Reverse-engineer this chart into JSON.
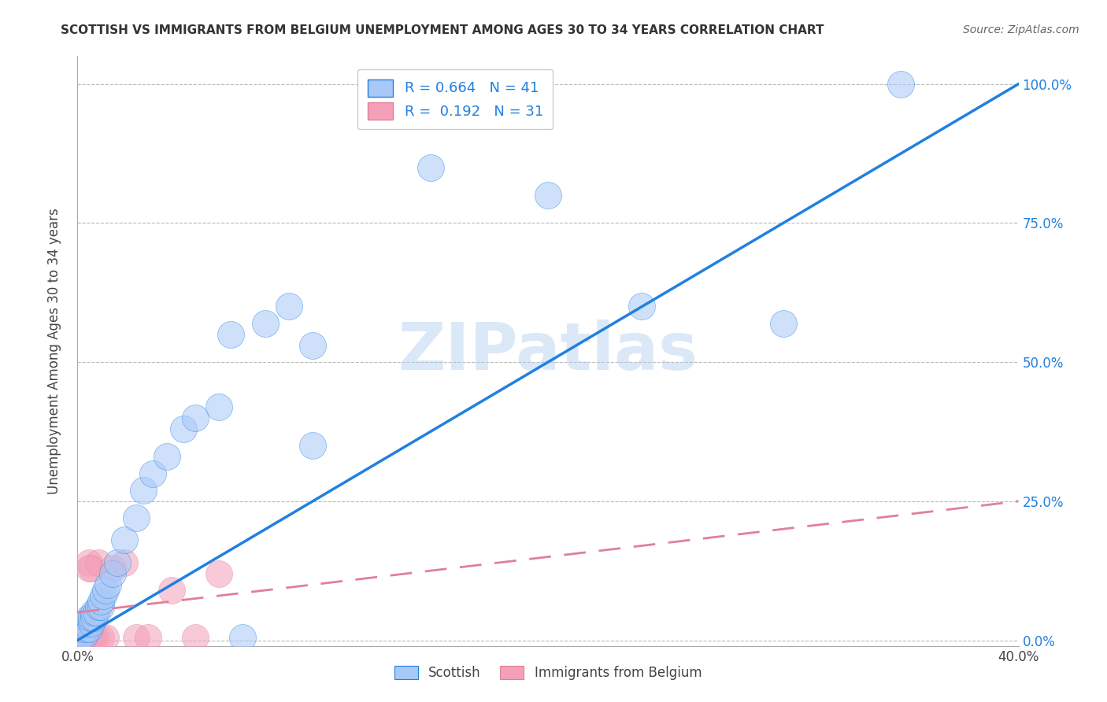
{
  "title": "SCOTTISH VS IMMIGRANTS FROM BELGIUM UNEMPLOYMENT AMONG AGES 30 TO 34 YEARS CORRELATION CHART",
  "source": "Source: ZipAtlas.com",
  "ylabel": "Unemployment Among Ages 30 to 34 years",
  "xlim": [
    0.0,
    0.4
  ],
  "ylim": [
    -0.01,
    1.05
  ],
  "xticks": [
    0.0,
    0.05,
    0.1,
    0.15,
    0.2,
    0.25,
    0.3,
    0.35,
    0.4
  ],
  "yticks": [
    0.0,
    0.25,
    0.5,
    0.75,
    1.0
  ],
  "ytick_labels": [
    "0.0%",
    "25.0%",
    "50.0%",
    "75.0%",
    "100.0%"
  ],
  "xtick_labels": [
    "0.0%",
    "",
    "",
    "",
    "",
    "",
    "",
    "",
    "40.0%"
  ],
  "R_scottish": 0.664,
  "N_scottish": 41,
  "R_belgium": 0.192,
  "N_belgium": 31,
  "scottish_color": "#a8c8f8",
  "belgium_color": "#f4a0b8",
  "line_color_scottish": "#2080e0",
  "line_color_belgium": "#e08098",
  "watermark": "ZIPatlas",
  "scottish_x": [
    0.001,
    0.002,
    0.002,
    0.003,
    0.003,
    0.004,
    0.004,
    0.005,
    0.005,
    0.006,
    0.006,
    0.007,
    0.007,
    0.008,
    0.009,
    0.01,
    0.01,
    0.011,
    0.012,
    0.013,
    0.015,
    0.017,
    0.02,
    0.025,
    0.028,
    0.032,
    0.038,
    0.045,
    0.05,
    0.06,
    0.065,
    0.07,
    0.08,
    0.09,
    0.1,
    0.1,
    0.15,
    0.2,
    0.24,
    0.3,
    0.35
  ],
  "scottish_y": [
    0.005,
    0.01,
    0.02,
    0.01,
    0.03,
    0.02,
    0.03,
    0.02,
    0.04,
    0.03,
    0.04,
    0.04,
    0.05,
    0.05,
    0.06,
    0.06,
    0.07,
    0.08,
    0.09,
    0.1,
    0.12,
    0.14,
    0.18,
    0.22,
    0.27,
    0.3,
    0.33,
    0.38,
    0.4,
    0.42,
    0.55,
    0.005,
    0.57,
    0.6,
    0.35,
    0.53,
    0.85,
    0.8,
    0.6,
    0.57,
    1.0
  ],
  "belgium_x": [
    0.001,
    0.001,
    0.001,
    0.002,
    0.002,
    0.002,
    0.003,
    0.003,
    0.003,
    0.004,
    0.004,
    0.004,
    0.005,
    0.005,
    0.005,
    0.005,
    0.006,
    0.006,
    0.007,
    0.008,
    0.009,
    0.01,
    0.012,
    0.015,
    0.02,
    0.025,
    0.03,
    0.04,
    0.05,
    0.06,
    0.005
  ],
  "belgium_y": [
    0.005,
    0.01,
    0.02,
    0.005,
    0.01,
    0.02,
    0.005,
    0.01,
    0.02,
    0.005,
    0.01,
    0.02,
    0.005,
    0.01,
    0.02,
    0.14,
    0.005,
    0.13,
    0.005,
    0.005,
    0.14,
    0.005,
    0.005,
    0.13,
    0.14,
    0.005,
    0.005,
    0.09,
    0.005,
    0.12,
    0.13
  ]
}
